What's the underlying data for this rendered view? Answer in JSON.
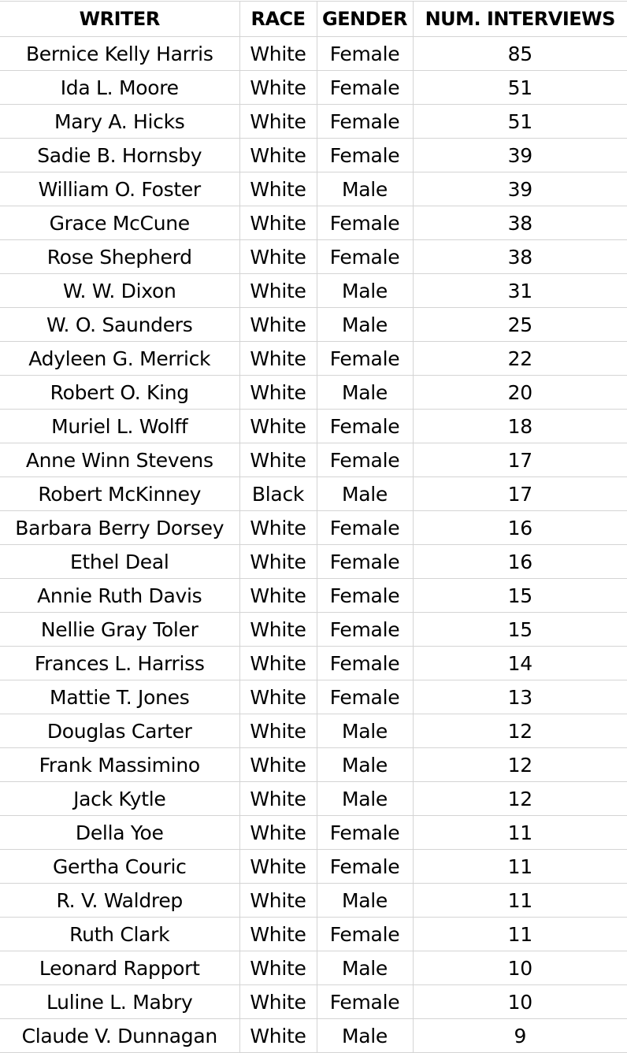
{
  "headers": {
    "writer": "WRITER",
    "race": "RACE",
    "gender": "GENDER",
    "interviews": "NUM. INTERVIEWS"
  },
  "rows": [
    {
      "writer": "Bernice Kelly Harris",
      "race": "White",
      "gender": "Female",
      "interviews": "85"
    },
    {
      "writer": "Ida L. Moore",
      "race": "White",
      "gender": "Female",
      "interviews": "51"
    },
    {
      "writer": "Mary A. Hicks",
      "race": "White",
      "gender": "Female",
      "interviews": "51"
    },
    {
      "writer": "Sadie B. Hornsby",
      "race": "White",
      "gender": "Female",
      "interviews": "39"
    },
    {
      "writer": "William O. Foster",
      "race": "White",
      "gender": "Male",
      "interviews": "39"
    },
    {
      "writer": "Grace McCune",
      "race": "White",
      "gender": "Female",
      "interviews": "38"
    },
    {
      "writer": "Rose Shepherd",
      "race": "White",
      "gender": "Female",
      "interviews": "38"
    },
    {
      "writer": "W. W. Dixon",
      "race": "White",
      "gender": "Male",
      "interviews": "31"
    },
    {
      "writer": "W. O. Saunders",
      "race": "White",
      "gender": "Male",
      "interviews": "25"
    },
    {
      "writer": "Adyleen G. Merrick",
      "race": "White",
      "gender": "Female",
      "interviews": "22"
    },
    {
      "writer": "Robert O. King",
      "race": "White",
      "gender": "Male",
      "interviews": "20"
    },
    {
      "writer": "Muriel L. Wolff",
      "race": "White",
      "gender": "Female",
      "interviews": "18"
    },
    {
      "writer": "Anne Winn Stevens",
      "race": "White",
      "gender": "Female",
      "interviews": "17"
    },
    {
      "writer": "Robert McKinney",
      "race": "Black",
      "gender": "Male",
      "interviews": "17"
    },
    {
      "writer": "Barbara Berry Dorsey",
      "race": "White",
      "gender": "Female",
      "interviews": "16"
    },
    {
      "writer": "Ethel Deal",
      "race": "White",
      "gender": "Female",
      "interviews": "16"
    },
    {
      "writer": "Annie Ruth Davis",
      "race": "White",
      "gender": "Female",
      "interviews": "15"
    },
    {
      "writer": "Nellie Gray Toler",
      "race": "White",
      "gender": "Female",
      "interviews": "15"
    },
    {
      "writer": "Frances L. Harriss",
      "race": "White",
      "gender": "Female",
      "interviews": "14"
    },
    {
      "writer": "Mattie T. Jones",
      "race": "White",
      "gender": "Female",
      "interviews": "13"
    },
    {
      "writer": "Douglas Carter",
      "race": "White",
      "gender": "Male",
      "interviews": "12"
    },
    {
      "writer": "Frank Massimino",
      "race": "White",
      "gender": "Male",
      "interviews": "12"
    },
    {
      "writer": "Jack Kytle",
      "race": "White",
      "gender": "Male",
      "interviews": "12"
    },
    {
      "writer": "Della Yoe",
      "race": "White",
      "gender": "Female",
      "interviews": "11"
    },
    {
      "writer": "Gertha Couric",
      "race": "White",
      "gender": "Female",
      "interviews": "11"
    },
    {
      "writer": "R. V. Waldrep",
      "race": "White",
      "gender": "Male",
      "interviews": "11"
    },
    {
      "writer": "Ruth Clark",
      "race": "White",
      "gender": "Female",
      "interviews": "11"
    },
    {
      "writer": "Leonard Rapport",
      "race": "White",
      "gender": "Male",
      "interviews": "10"
    },
    {
      "writer": "Luline L. Mabry",
      "race": "White",
      "gender": "Female",
      "interviews": "10"
    },
    {
      "writer": "Claude V. Dunnagan",
      "race": "White",
      "gender": "Male",
      "interviews": "9"
    }
  ]
}
